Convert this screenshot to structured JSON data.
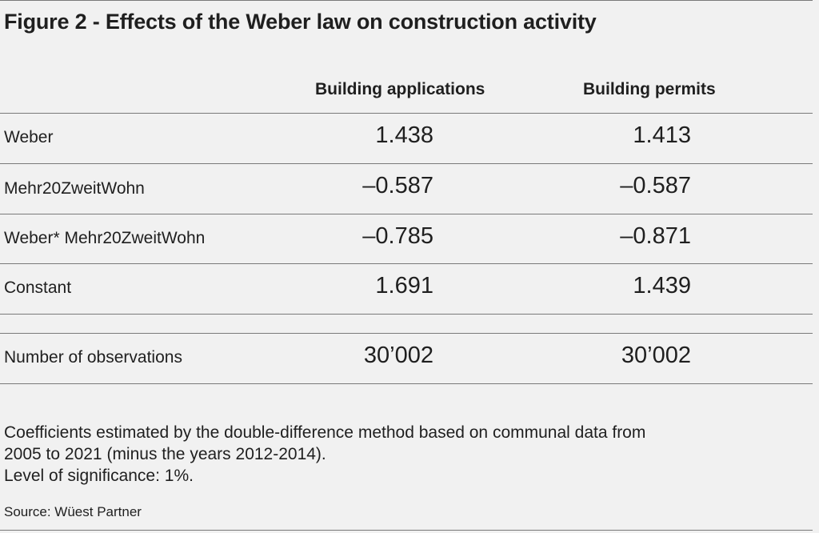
{
  "chart_data": {
    "type": "table",
    "title": "Figure 2 - Effects of the Weber law on construction activity",
    "columns": [
      "Building applications",
      "Building permits"
    ],
    "rows": [
      {
        "label": "Weber",
        "values": [
          "1.438",
          "1.413"
        ]
      },
      {
        "label": "Mehr20ZweitWohn",
        "values": [
          "–0.587",
          "–0.587"
        ]
      },
      {
        "label": "Weber* Mehr20ZweitWohn",
        "values": [
          "–0.785",
          "–0.871"
        ]
      },
      {
        "label": "Constant",
        "values": [
          "1.691",
          "1.439"
        ]
      }
    ],
    "observations": {
      "label": "Number of observations",
      "values": [
        "30’002",
        "30’002"
      ]
    },
    "notes": [
      "Coefficients estimated by the double-difference method based on communal data from",
      "2005 to 2021 (minus the years 2012-2014).",
      "Level of significance: 1%."
    ],
    "source": "Source: Wüest Partner"
  },
  "colors": {
    "background": "#f1f1f1",
    "text": "#1f1f1f",
    "rules": "#7a7a7a"
  }
}
